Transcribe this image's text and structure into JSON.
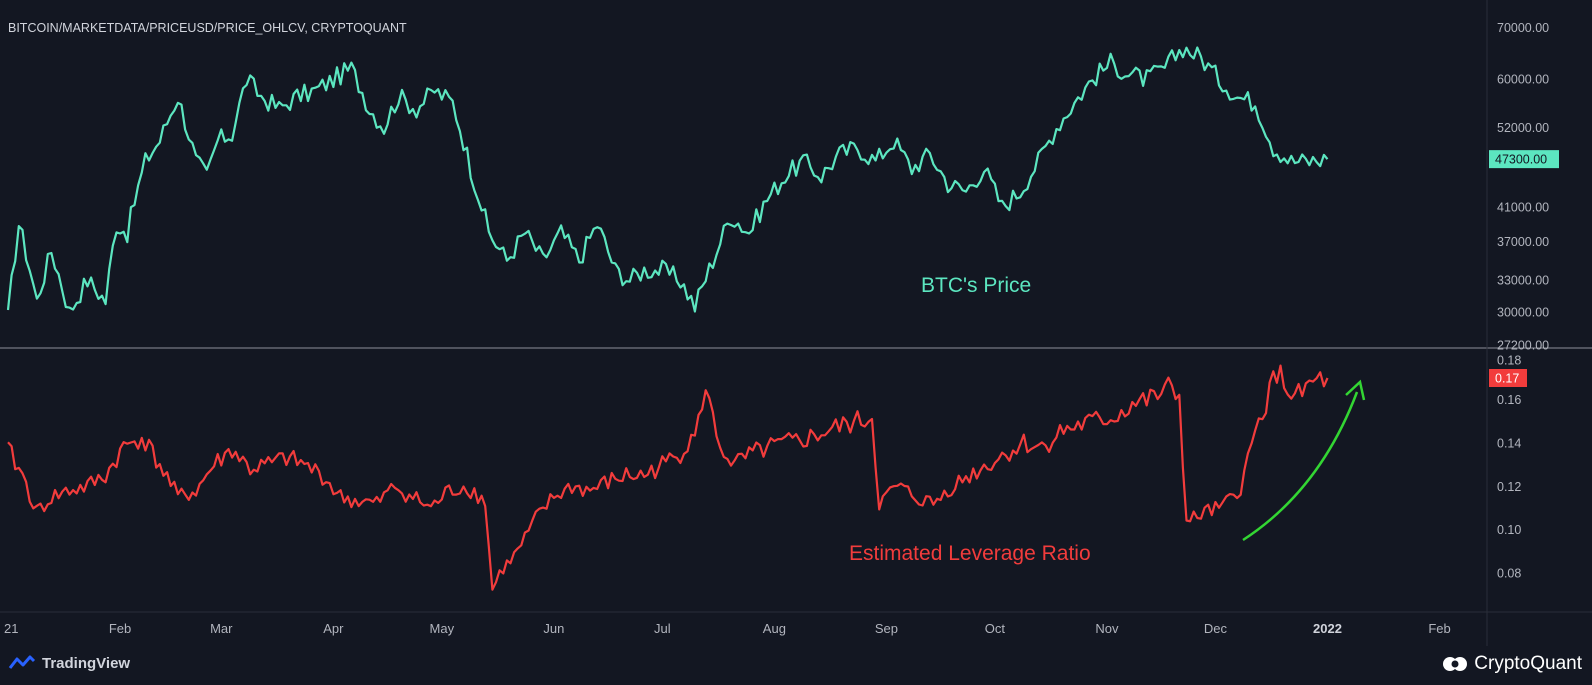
{
  "header": {
    "symbol": "BITCOIN/MARKETDATA/PRICEUSD/PRICE_OHLCV, CRYPTOQUANT"
  },
  "footer": {
    "left_brand": "TradingView",
    "right_brand": "CryptoQuant"
  },
  "colors": {
    "background": "#131722",
    "price_line": "#5ce6c0",
    "leverage_line": "#f23c3c",
    "arrow": "#33d633",
    "axis_text": "#b2b5be",
    "separator": "#8c8f99"
  },
  "chart_data": [
    {
      "type": "line",
      "annotation": "BTC's Price",
      "y_scale": "log",
      "ylim": [
        27200,
        72000
      ],
      "yticks": [
        "70000.00",
        "60000.00",
        "52000.00",
        "47300.00",
        "41000.00",
        "37000.00",
        "33000.00",
        "30000.00",
        "27200.00"
      ],
      "last_value_label": "47300.00",
      "series": [
        {
          "x": [
            0,
            3,
            8,
            12,
            17,
            22,
            27,
            30,
            33,
            38,
            42,
            47,
            52,
            55,
            58,
            62,
            66,
            70,
            75,
            80,
            85,
            90,
            95,
            100,
            104,
            108,
            113,
            118,
            123,
            128,
            133,
            138,
            143,
            148,
            153,
            158,
            163,
            168,
            172,
            176,
            181,
            186,
            190,
            195,
            200,
            205,
            210,
            215,
            220,
            225,
            230,
            235,
            240,
            245,
            250,
            255,
            260,
            265,
            270,
            275,
            280,
            285,
            290,
            295,
            300,
            305,
            310,
            315,
            320,
            325,
            330,
            335,
            340,
            345,
            350,
            355,
            360,
            365
          ],
          "values": [
            29500,
            39000,
            31000,
            36000,
            30000,
            33000,
            31000,
            39000,
            38000,
            47000,
            50000,
            57000,
            47000,
            45000,
            50000,
            51000,
            60000,
            57000,
            55000,
            57000,
            58000,
            60000,
            62000,
            55000,
            52000,
            57000,
            55000,
            58000,
            56000,
            46000,
            38000,
            35000,
            38000,
            35000,
            38000,
            35000,
            39000,
            34000,
            33000,
            34000,
            34000,
            33000,
            30500,
            35000,
            40000,
            38000,
            42000,
            45000,
            47000,
            45000,
            48000,
            49000,
            47000,
            50000,
            46000,
            48000,
            44000,
            43000,
            46000,
            41000,
            43000,
            47000,
            52000,
            56000,
            60000,
            63000,
            61000,
            60000,
            62000,
            66000,
            64000,
            60000,
            57000,
            56000,
            49000,
            47000,
            47000,
            47300
          ]
        }
      ]
    },
    {
      "type": "line",
      "annotation": "Estimated Leverage Ratio",
      "ylim": [
        0.062,
        0.182
      ],
      "yticks": [
        "0.18",
        "0.17",
        "0.16",
        "0.14",
        "0.12",
        "0.10",
        "0.08"
      ],
      "last_value_label": "0.17",
      "series": [
        {
          "x": [
            0,
            4,
            8,
            12,
            17,
            22,
            27,
            32,
            37,
            42,
            47,
            52,
            57,
            62,
            67,
            72,
            77,
            82,
            87,
            92,
            97,
            102,
            107,
            112,
            117,
            122,
            127,
            132,
            134,
            136,
            141,
            146,
            151,
            156,
            161,
            166,
            171,
            176,
            181,
            186,
            191,
            194,
            196,
            201,
            206,
            211,
            216,
            221,
            226,
            231,
            236,
            239,
            241,
            246,
            251,
            256,
            261,
            266,
            271,
            276,
            281,
            286,
            291,
            296,
            301,
            306,
            311,
            316,
            321,
            324,
            326,
            331,
            336,
            341,
            346,
            351,
            356,
            361,
            365
          ],
          "values": [
            0.137,
            0.125,
            0.108,
            0.115,
            0.118,
            0.12,
            0.125,
            0.138,
            0.143,
            0.13,
            0.115,
            0.118,
            0.13,
            0.137,
            0.128,
            0.13,
            0.133,
            0.13,
            0.125,
            0.115,
            0.113,
            0.112,
            0.12,
            0.115,
            0.11,
            0.118,
            0.12,
            0.113,
            0.072,
            0.08,
            0.09,
            0.105,
            0.115,
            0.12,
            0.118,
            0.122,
            0.125,
            0.125,
            0.13,
            0.135,
            0.15,
            0.165,
            0.14,
            0.13,
            0.135,
            0.138,
            0.14,
            0.142,
            0.145,
            0.148,
            0.15,
            0.152,
            0.112,
            0.12,
            0.115,
            0.112,
            0.12,
            0.125,
            0.13,
            0.135,
            0.14,
            0.138,
            0.145,
            0.148,
            0.15,
            0.152,
            0.158,
            0.16,
            0.165,
            0.162,
            0.103,
            0.108,
            0.11,
            0.12,
            0.15,
            0.173,
            0.16,
            0.168,
            0.17
          ]
        }
      ]
    },
    {
      "type": "axis",
      "xticks": [
        "21",
        "Feb",
        "Mar",
        "Apr",
        "May",
        "Jun",
        "Jul",
        "Aug",
        "Sep",
        "Oct",
        "Nov",
        "Dec",
        "2022",
        "Feb"
      ],
      "xtick_days": [
        0,
        31,
        59,
        90,
        120,
        151,
        181,
        212,
        243,
        273,
        304,
        334,
        365,
        396
      ]
    }
  ]
}
